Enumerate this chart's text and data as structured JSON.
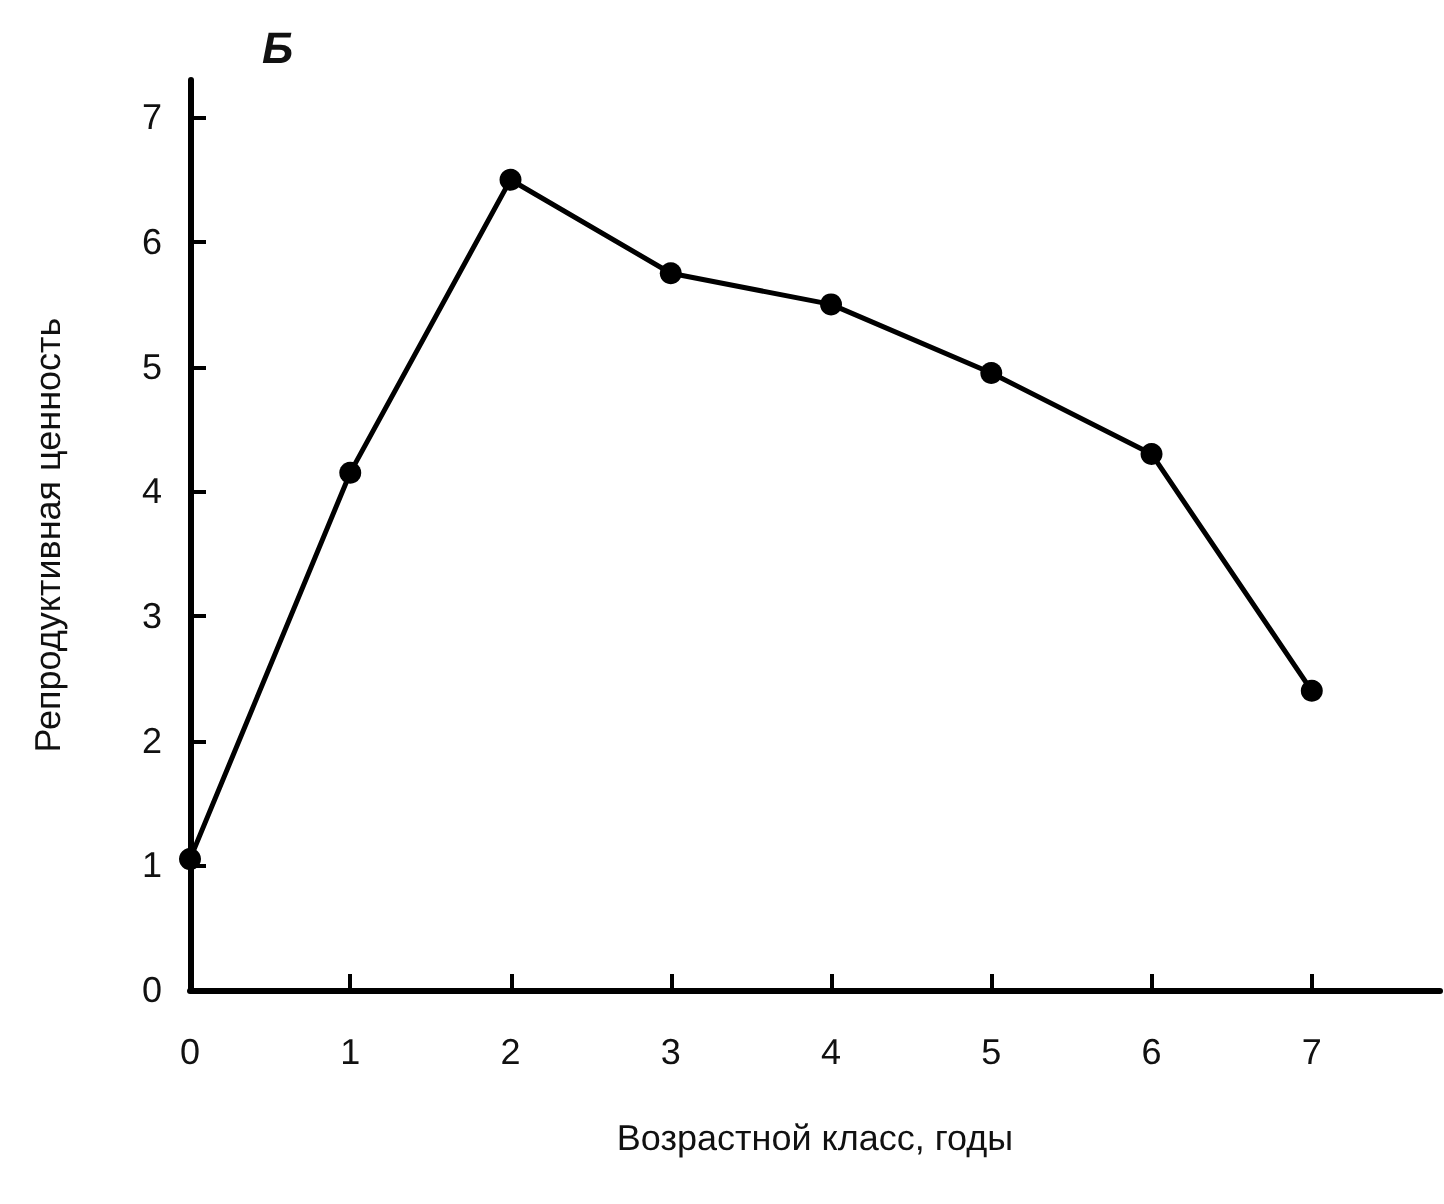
{
  "chart_data": {
    "type": "line",
    "title": "Б",
    "xlabel": "Возрастной класс, годы",
    "ylabel": "Репродуктивная ценность",
    "x": [
      0,
      1,
      2,
      3,
      4,
      5,
      6,
      7
    ],
    "series": [
      {
        "color": "#000000",
        "values": [
          1.05,
          4.15,
          6.5,
          5.75,
          5.5,
          4.95,
          4.3,
          2.4
        ]
      }
    ],
    "xlim": [
      0,
      7.8
    ],
    "xticks": [
      0,
      1,
      2,
      3,
      4,
      5,
      6,
      7
    ],
    "ylim": [
      0,
      7.3
    ],
    "yticks": [
      0,
      1,
      2,
      3,
      4,
      5,
      6,
      7
    ],
    "grid": false,
    "marker": "circle",
    "line_style": "solid"
  }
}
